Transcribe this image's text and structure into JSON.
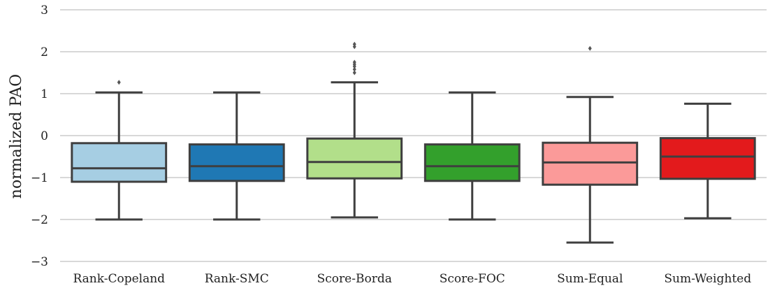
{
  "chart_data": {
    "type": "box",
    "ylabel": "normalized PAO",
    "ylim": [
      -3,
      3
    ],
    "yticks": [
      3,
      2,
      1,
      0,
      -1,
      -2,
      -3
    ],
    "ytick_labels": [
      "3",
      "2",
      "1",
      "0",
      "−1",
      "−2",
      "−3"
    ],
    "grid": "horizontal",
    "categories": [
      "Rank-Copeland",
      "Rank-SMC",
      "Score-Borda",
      "Score-FOC",
      "Sum-Equal",
      "Sum-Weighted"
    ],
    "boxes": [
      {
        "category": "Rank-Copeland",
        "whisker_low": -2.0,
        "q1": -1.1,
        "median": -0.78,
        "q3": -0.18,
        "whisker_high": 1.03,
        "fliers": [
          1.27
        ],
        "color": "#a6cee3"
      },
      {
        "category": "Rank-SMC",
        "whisker_low": -2.0,
        "q1": -1.08,
        "median": -0.73,
        "q3": -0.21,
        "whisker_high": 1.03,
        "fliers": [],
        "color": "#1f78b4"
      },
      {
        "category": "Score-Borda",
        "whisker_low": -1.95,
        "q1": -1.02,
        "median": -0.63,
        "q3": -0.07,
        "whisker_high": 1.27,
        "fliers": [
          1.5,
          1.58,
          1.65,
          1.7,
          1.75,
          2.12,
          2.18
        ],
        "color": "#b2df8a"
      },
      {
        "category": "Score-FOC",
        "whisker_low": -2.0,
        "q1": -1.08,
        "median": -0.73,
        "q3": -0.21,
        "whisker_high": 1.03,
        "fliers": [],
        "color": "#33a02c"
      },
      {
        "category": "Sum-Equal",
        "whisker_low": -2.55,
        "q1": -1.17,
        "median": -0.64,
        "q3": -0.17,
        "whisker_high": 0.92,
        "fliers": [
          2.08
        ],
        "color": "#fb9a99"
      },
      {
        "category": "Sum-Weighted",
        "whisker_low": -1.97,
        "q1": -1.03,
        "median": -0.5,
        "q3": -0.06,
        "whisker_high": 0.76,
        "fliers": [],
        "color": "#e31a1c"
      }
    ]
  }
}
